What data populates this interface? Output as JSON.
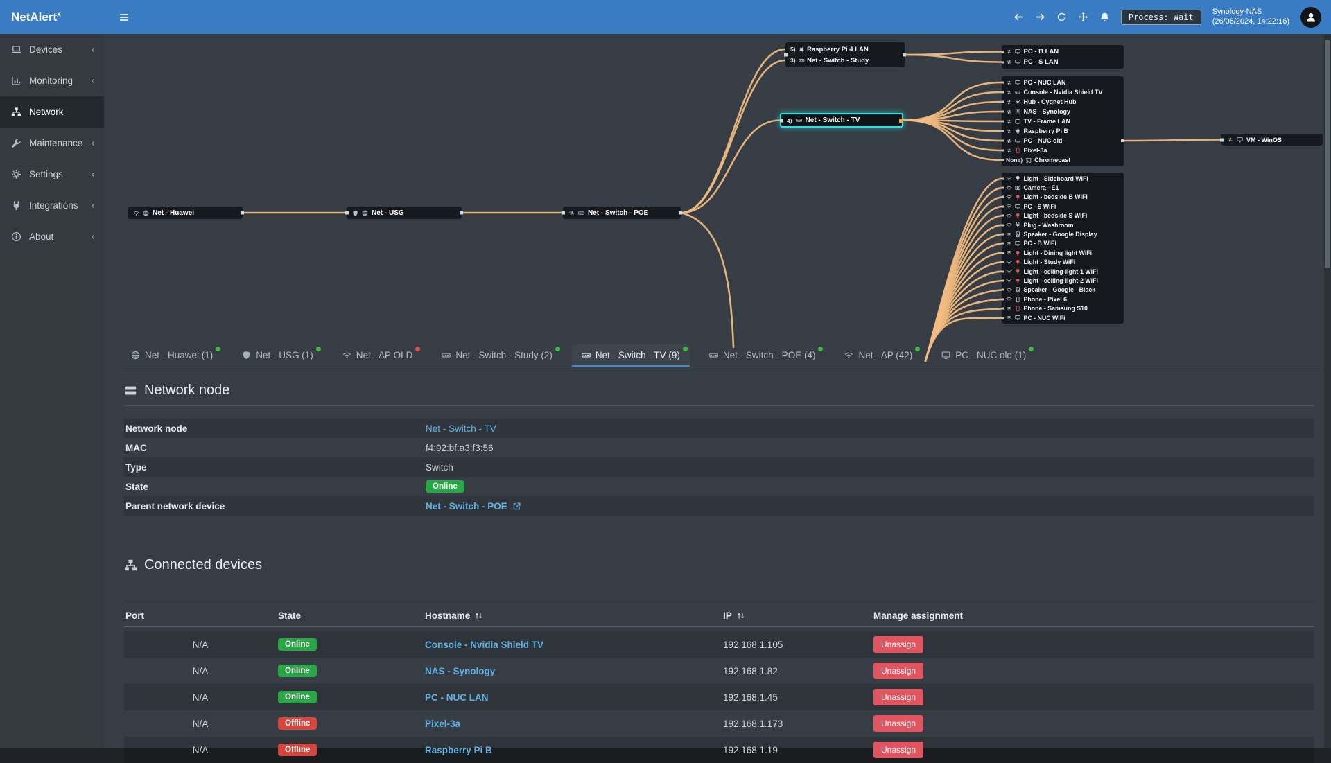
{
  "colors": {
    "accent": "#3a7cc4",
    "edge": "#f2bc80",
    "selection": "#23e5e9",
    "online": "#28a745",
    "offline": "#d9443c",
    "link": "#5fb2e4"
  },
  "topbar": {
    "brand": "NetAlert",
    "brand_sup": "x",
    "process_badge": "Process: Wait",
    "host": "Synology-NAS",
    "timestamp": "(26/06/2024, 14:22:16)"
  },
  "sidebar": {
    "items": [
      {
        "label": "Devices",
        "icon": "laptop",
        "chevron": "‹"
      },
      {
        "label": "Monitoring",
        "icon": "chart",
        "chevron": "‹"
      },
      {
        "label": "Network",
        "icon": "sitemap",
        "active": true
      },
      {
        "label": "Maintenance",
        "icon": "wrench",
        "chevron": "‹"
      },
      {
        "label": "Settings",
        "icon": "gear",
        "chevron": "‹"
      },
      {
        "label": "Integrations",
        "icon": "plug",
        "chevron": "‹"
      },
      {
        "label": "About",
        "icon": "info",
        "chevron": "‹"
      }
    ]
  },
  "diagram": {
    "nodes": {
      "huawei": {
        "label": "Net - Huawei"
      },
      "usg": {
        "label": "Net - USG"
      },
      "poe": {
        "label": "Net - Switch - POE"
      },
      "tv": {
        "port": "4)",
        "label": "Net - Switch - TV"
      },
      "vm": {
        "label": "VM - WinOS"
      }
    },
    "combo_rows": [
      {
        "port": "5)",
        "icon": "chip",
        "label": "Raspberry Pi 4 LAN"
      },
      {
        "port": "3)",
        "icon": "switch",
        "label": "Net - Switch - Study"
      }
    ],
    "group_study": [
      {
        "conn": "eth",
        "icon": "monitor",
        "label": "PC - B LAN"
      },
      {
        "conn": "eth",
        "icon": "monitor",
        "label": "PC - S LAN"
      }
    ],
    "group_tv": [
      {
        "conn": "eth",
        "icon": "monitor",
        "label": "PC - NUC LAN"
      },
      {
        "conn": "eth",
        "icon": "gamepad",
        "label": "Console - Nvidia Shield TV"
      },
      {
        "conn": "eth",
        "icon": "asterisk",
        "label": "Hub - Cygnet Hub"
      },
      {
        "conn": "eth",
        "icon": "nas",
        "label": "NAS - Synology"
      },
      {
        "conn": "eth",
        "icon": "tv",
        "label": "TV - Frame LAN"
      },
      {
        "conn": "eth",
        "icon": "chip",
        "label": "Raspberry Pi B"
      },
      {
        "conn": "eth",
        "icon": "monitor",
        "label": "PC - NUC old",
        "out": true
      },
      {
        "conn": "eth",
        "icon": "phone",
        "icon_color": "#e5534b",
        "label": "Pixel-3a"
      },
      {
        "port": "None)",
        "conn": "cast",
        "label": "Chromecast"
      }
    ],
    "group_wifi": [
      {
        "conn": "wifi",
        "icon": "bulb",
        "label": "Light - Sideboard WiFi"
      },
      {
        "conn": "wifi",
        "icon": "camera",
        "label": "Camera - E1"
      },
      {
        "conn": "wifi",
        "icon": "bulb",
        "icon_color": "#e5534b",
        "label": "Light - bedside B WiFi"
      },
      {
        "conn": "wifi",
        "icon": "monitor",
        "label": "PC - S WiFi"
      },
      {
        "conn": "wifi",
        "icon": "bulb",
        "icon_color": "#e5534b",
        "label": "Light - bedside S WiFi"
      },
      {
        "conn": "wifi",
        "icon": "plug",
        "label": "Plug - Washroom"
      },
      {
        "conn": "wifi",
        "icon": "speaker",
        "label": "Speaker - Google Display"
      },
      {
        "conn": "wifi",
        "icon": "monitor",
        "label": "PC - B WiFi"
      },
      {
        "conn": "wifi",
        "icon": "bulb",
        "icon_color": "#e5534b",
        "label": "Light - Dining light WiFi"
      },
      {
        "conn": "wifi",
        "icon": "bulb",
        "icon_color": "#e5534b",
        "label": "Light - Study WiFi"
      },
      {
        "conn": "wifi",
        "icon": "bulb",
        "icon_color": "#e5534b",
        "label": "Light - ceiling-light-1 WiFi"
      },
      {
        "conn": "wifi",
        "icon": "bulb",
        "icon_color": "#e5534b",
        "label": "Light - ceiling-light-2 WiFi"
      },
      {
        "conn": "wifi",
        "icon": "speaker",
        "label": "Speaker - Google - Black"
      },
      {
        "conn": "wifi",
        "icon": "phone",
        "label": "Phone - Pixel 6"
      },
      {
        "conn": "wifi",
        "icon": "phone",
        "icon_color": "#e5534b",
        "label": "Phone - Samsung S10"
      },
      {
        "conn": "wifi",
        "icon": "monitor",
        "label": "PC - NUC WiFi"
      }
    ]
  },
  "tabs": [
    {
      "label": "Net - Huawei (1)",
      "icon": "globe",
      "dot": "#43b84a"
    },
    {
      "label": "Net - USG (1)",
      "icon": "shield",
      "dot": "#43b84a"
    },
    {
      "label": "Net - AP OLD",
      "icon": "wifi",
      "dot": "#e5484d"
    },
    {
      "label": "Net - Switch - Study (2)",
      "icon": "switch",
      "dot": "#43b84a"
    },
    {
      "label": "Net - Switch - TV (9)",
      "icon": "switch",
      "dot": "#43b84a",
      "active": true
    },
    {
      "label": "Net - Switch - POE (4)",
      "icon": "switch",
      "dot": "#43b84a"
    },
    {
      "label": "Net - AP (42)",
      "icon": "wifi",
      "dot": "#43b84a"
    },
    {
      "label": "PC - NUC old (1)",
      "icon": "monitor",
      "dot": "#43b84a"
    }
  ],
  "network_node": {
    "title": "Network node",
    "rows": [
      {
        "label": "Network node",
        "value": "Net - Switch - TV"
      },
      {
        "label": "MAC",
        "value": "f4:92:bf:a3:f3:56"
      },
      {
        "label": "Type",
        "value": "Switch"
      },
      {
        "label": "State",
        "value": "Online"
      },
      {
        "label": "Parent network device",
        "value": "Net - Switch - POE"
      }
    ]
  },
  "connected_devices": {
    "title": "Connected devices",
    "columns": {
      "port": "Port",
      "state": "State",
      "hostname": "Hostname",
      "ip": "IP",
      "manage": "Manage assignment"
    },
    "rows": [
      {
        "port": "N/A",
        "state": "Online",
        "hostname": "Console - Nvidia Shield TV",
        "ip": "192.168.1.105",
        "action": "Unassign"
      },
      {
        "port": "N/A",
        "state": "Online",
        "hostname": "NAS - Synology",
        "ip": "192.168.1.82",
        "action": "Unassign"
      },
      {
        "port": "N/A",
        "state": "Online",
        "hostname": "PC - NUC LAN",
        "ip": "192.168.1.45",
        "action": "Unassign"
      },
      {
        "port": "N/A",
        "state": "Offline",
        "hostname": "Pixel-3a",
        "ip": "192.168.1.173",
        "action": "Unassign"
      },
      {
        "port": "N/A",
        "state": "Offline",
        "hostname": "Raspberry Pi B",
        "ip": "192.168.1.19",
        "action": "Unassign"
      }
    ]
  }
}
